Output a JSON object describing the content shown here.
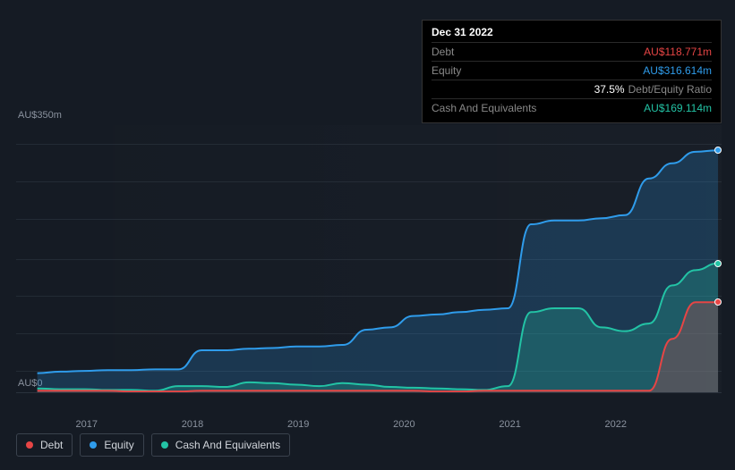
{
  "tooltip": {
    "date": "Dec 31 2022",
    "debt_label": "Debt",
    "debt_value": "AU$118.771m",
    "equity_label": "Equity",
    "equity_value": "AU$316.614m",
    "ratio_pct": "37.5%",
    "ratio_label": "Debt/Equity Ratio",
    "cash_label": "Cash And Equivalents",
    "cash_value": "AU$169.114m"
  },
  "chart": {
    "type": "area",
    "background_color": "#151b24",
    "grid_color": "rgba(80,90,105,0.25)",
    "ymax": 350,
    "ymin": 0,
    "y_label_top": "AU$350m",
    "y_label_bottom": "AU$0",
    "y_label_fontsize": 11,
    "y_label_color": "#8a929e",
    "x_ticks": [
      "2017",
      "2018",
      "2019",
      "2020",
      "2021",
      "2022"
    ],
    "x_tick_positions_pct": [
      10,
      25,
      40,
      55,
      70,
      85
    ],
    "x_label_fontsize": 11,
    "x_label_color": "#8a929e",
    "grid_lines_pct": [
      7,
      21,
      35,
      50,
      64,
      78,
      92
    ],
    "series": {
      "debt": {
        "color": "#e64545",
        "fill": "rgba(230,69,69,0.25)",
        "line_width": 2,
        "values": [
          2,
          2,
          2,
          2,
          1,
          1,
          1,
          2,
          2,
          2,
          2,
          2,
          2,
          2,
          2,
          2,
          2,
          1,
          1,
          2,
          2,
          2,
          2,
          2,
          2,
          2,
          2,
          70,
          118,
          118
        ]
      },
      "equity": {
        "color": "#2f9ceb",
        "fill": "rgba(47,156,235,0.22)",
        "line_width": 2,
        "values": [
          25,
          27,
          28,
          29,
          29,
          30,
          30,
          55,
          55,
          57,
          58,
          60,
          60,
          62,
          82,
          85,
          100,
          102,
          105,
          108,
          110,
          220,
          225,
          225,
          228,
          232,
          280,
          300,
          315,
          317
        ]
      },
      "cash": {
        "color": "#23c3a5",
        "fill": "rgba(35,195,165,0.25)",
        "line_width": 2,
        "values": [
          5,
          4,
          4,
          3,
          3,
          2,
          8,
          8,
          7,
          13,
          12,
          10,
          8,
          12,
          10,
          7,
          6,
          5,
          4,
          3,
          8,
          105,
          110,
          110,
          85,
          80,
          90,
          140,
          160,
          169
        ]
      }
    },
    "x_points_pct": [
      3,
      6.3,
      9.7,
      13,
      16.3,
      19.7,
      23,
      26.3,
      29.7,
      33,
      36.3,
      39.7,
      43,
      46.3,
      49.7,
      53,
      56.3,
      59.7,
      63,
      66.3,
      69.7,
      73,
      76.3,
      79.7,
      83,
      86.3,
      89.7,
      93,
      96.3,
      99.5
    ],
    "end_markers": {
      "debt": 118,
      "equity": 317,
      "cash": 169
    }
  },
  "legend": {
    "items": [
      {
        "key": "debt",
        "label": "Debt",
        "color": "#e64545"
      },
      {
        "key": "equity",
        "label": "Equity",
        "color": "#2f9ceb"
      },
      {
        "key": "cash",
        "label": "Cash And Equivalents",
        "color": "#23c3a5"
      }
    ]
  }
}
